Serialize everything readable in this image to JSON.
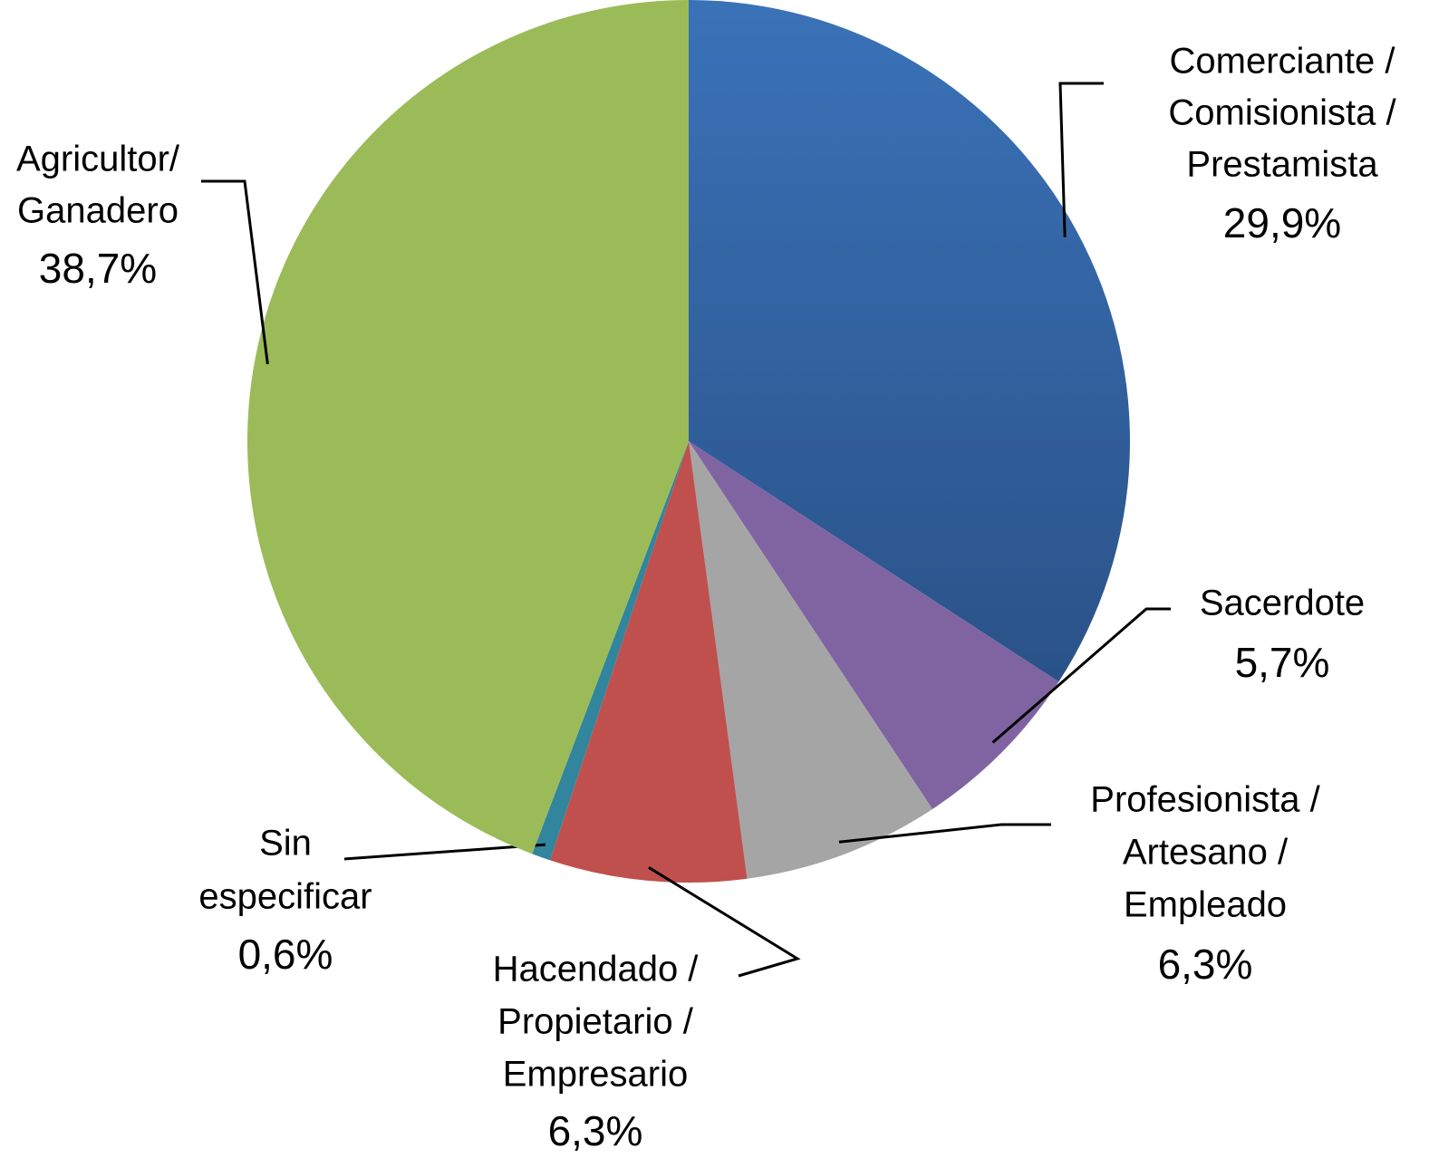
{
  "chart_data": {
    "type": "pie",
    "categories": [
      [
        "Comerciante /",
        "Comisionista /",
        "Prestamista"
      ],
      [
        "Sacerdote"
      ],
      [
        "Profesionista /",
        "Artesano /",
        "Empleado"
      ],
      [
        "Hacendado /",
        "Propietario /",
        "Empresario"
      ],
      [
        "Sin",
        "especificar"
      ],
      [
        "Agricultor/",
        "Ganadero"
      ]
    ],
    "values": [
      29.9,
      5.7,
      6.3,
      6.3,
      0.6,
      38.7
    ],
    "value_labels": [
      "29,9%",
      "5,7%",
      "6,3%",
      "6,3%",
      "0,6%",
      "38,7%"
    ],
    "colors": [
      "#3466a6",
      "#8064a2",
      "#a5a5a5",
      "#c0504d",
      "#31859c",
      "#9bbb59"
    ]
  }
}
